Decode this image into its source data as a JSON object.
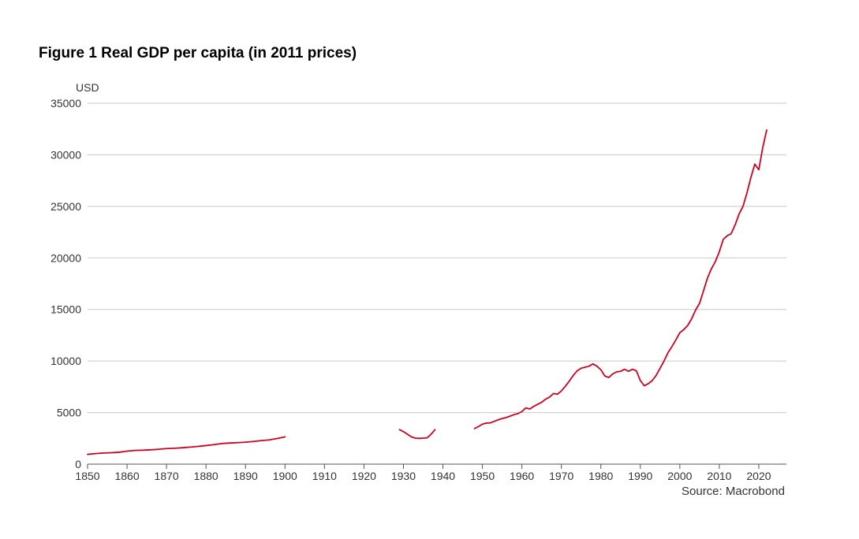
{
  "chart_data": {
    "type": "line",
    "title": "Figure 1 Real GDP per capita (in 2011 prices)",
    "ylabel": "USD",
    "xlabel": "",
    "source": "Source: Macrobond",
    "xlim": [
      1850,
      2027
    ],
    "ylim": [
      0,
      35000
    ],
    "x_ticks": [
      1850,
      1860,
      1870,
      1880,
      1890,
      1900,
      1910,
      1920,
      1930,
      1940,
      1950,
      1960,
      1970,
      1980,
      1990,
      2000,
      2010,
      2020
    ],
    "y_ticks": [
      0,
      5000,
      10000,
      15000,
      20000,
      25000,
      30000,
      35000
    ],
    "grid": true,
    "color": "#d1001f",
    "series": [
      {
        "name": "Real GDP per capita",
        "segments": [
          [
            [
              1850,
              950
            ],
            [
              1852,
              1020
            ],
            [
              1854,
              1080
            ],
            [
              1856,
              1110
            ],
            [
              1858,
              1150
            ],
            [
              1860,
              1260
            ],
            [
              1862,
              1330
            ],
            [
              1864,
              1350
            ],
            [
              1866,
              1390
            ],
            [
              1868,
              1440
            ],
            [
              1870,
              1510
            ],
            [
              1872,
              1540
            ],
            [
              1874,
              1590
            ],
            [
              1876,
              1650
            ],
            [
              1878,
              1720
            ],
            [
              1880,
              1800
            ],
            [
              1882,
              1890
            ],
            [
              1884,
              2000
            ],
            [
              1886,
              2050
            ],
            [
              1888,
              2080
            ],
            [
              1890,
              2130
            ],
            [
              1892,
              2200
            ],
            [
              1894,
              2280
            ],
            [
              1896,
              2350
            ],
            [
              1898,
              2480
            ],
            [
              1900,
              2650
            ]
          ],
          [
            [
              1929,
              3350
            ],
            [
              1930,
              3150
            ],
            [
              1931,
              2900
            ],
            [
              1932,
              2650
            ],
            [
              1933,
              2520
            ],
            [
              1934,
              2500
            ],
            [
              1935,
              2520
            ],
            [
              1936,
              2550
            ],
            [
              1937,
              2900
            ],
            [
              1938,
              3350
            ]
          ],
          [
            [
              1948,
              3450
            ],
            [
              1949,
              3650
            ],
            [
              1950,
              3880
            ],
            [
              1951,
              3980
            ],
            [
              1952,
              4000
            ],
            [
              1953,
              4150
            ],
            [
              1954,
              4300
            ],
            [
              1955,
              4420
            ],
            [
              1956,
              4520
            ],
            [
              1957,
              4650
            ],
            [
              1958,
              4800
            ],
            [
              1959,
              4900
            ],
            [
              1960,
              5100
            ],
            [
              1961,
              5450
            ],
            [
              1962,
              5350
            ],
            [
              1963,
              5600
            ],
            [
              1964,
              5800
            ],
            [
              1965,
              6000
            ],
            [
              1966,
              6300
            ],
            [
              1967,
              6500
            ],
            [
              1968,
              6850
            ],
            [
              1969,
              6780
            ],
            [
              1970,
              7100
            ],
            [
              1971,
              7550
            ],
            [
              1972,
              8050
            ],
            [
              1973,
              8600
            ],
            [
              1974,
              9050
            ],
            [
              1975,
              9300
            ],
            [
              1976,
              9400
            ],
            [
              1977,
              9500
            ],
            [
              1978,
              9720
            ],
            [
              1979,
              9500
            ],
            [
              1980,
              9150
            ],
            [
              1981,
              8550
            ],
            [
              1982,
              8400
            ],
            [
              1983,
              8750
            ],
            [
              1984,
              8950
            ],
            [
              1985,
              9000
            ],
            [
              1986,
              9200
            ],
            [
              1987,
              9000
            ],
            [
              1988,
              9200
            ],
            [
              1989,
              9050
            ],
            [
              1990,
              8100
            ],
            [
              1991,
              7600
            ],
            [
              1992,
              7800
            ],
            [
              1993,
              8100
            ],
            [
              1994,
              8600
            ],
            [
              1995,
              9300
            ],
            [
              1996,
              10000
            ],
            [
              1997,
              10800
            ],
            [
              1998,
              11400
            ],
            [
              1999,
              12050
            ],
            [
              2000,
              12750
            ],
            [
              2001,
              13050
            ],
            [
              2002,
              13450
            ],
            [
              2003,
              14100
            ],
            [
              2004,
              14950
            ],
            [
              2005,
              15600
            ],
            [
              2006,
              16800
            ],
            [
              2007,
              18050
            ],
            [
              2008,
              18950
            ],
            [
              2009,
              19650
            ],
            [
              2010,
              20600
            ],
            [
              2011,
              21800
            ],
            [
              2012,
              22150
            ],
            [
              2013,
              22350
            ],
            [
              2014,
              23200
            ],
            [
              2015,
              24250
            ],
            [
              2016,
              25000
            ],
            [
              2017,
              26300
            ],
            [
              2018,
              27800
            ],
            [
              2019,
              29100
            ],
            [
              2020,
              28550
            ],
            [
              2021,
              30700
            ],
            [
              2022,
              32400
            ]
          ]
        ]
      }
    ]
  }
}
